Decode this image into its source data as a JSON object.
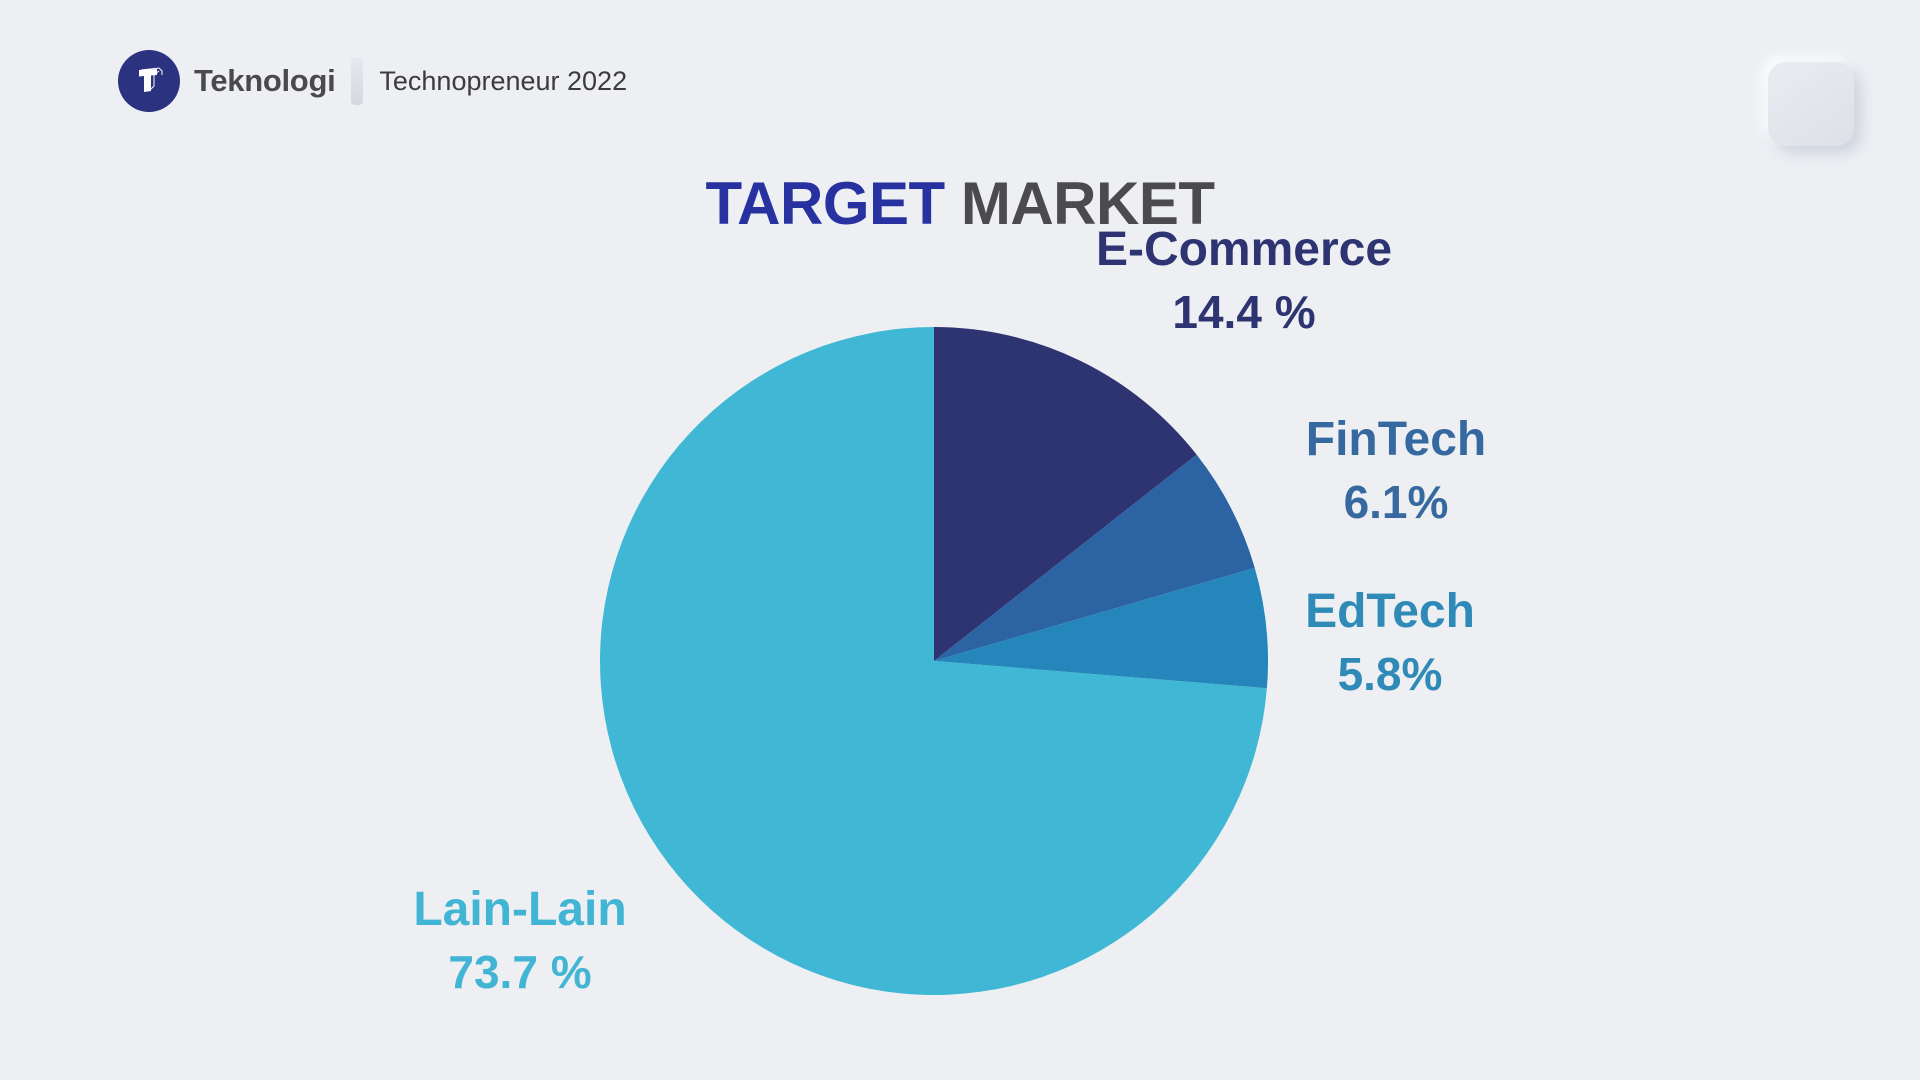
{
  "page": {
    "background": "#edeff3"
  },
  "header": {
    "brand": "Teknologi",
    "event": "Technopreneur 2022",
    "logo": {
      "icon": "isometric-t-logo",
      "bg_color": "#2b3380",
      "glyph_color": "#ffffff"
    }
  },
  "corner_tile": {
    "style": "neumorphic-square",
    "color": "#e1e5ea"
  },
  "title": {
    "primary": "TARGET",
    "secondary": "MARKET",
    "primary_color": "#2831a0",
    "secondary_color": "#4b4b4d"
  },
  "chart_data": {
    "type": "pie",
    "title": "TARGET MARKET",
    "start_angle_deg": 0,
    "direction": "clockwise",
    "unit": "%",
    "legend_position": "labels-around-pie",
    "slices": [
      {
        "label": "E-Commerce",
        "value": 14.4,
        "display_value": "14.4 %",
        "color": "#2e3471",
        "label_color": "#2e3471"
      },
      {
        "label": "FinTech",
        "value": 6.1,
        "display_value": "6.1%",
        "color": "#2c63a2",
        "label_color": "#35699f"
      },
      {
        "label": "EdTech",
        "value": 5.8,
        "display_value": "5.8%",
        "color": "#2486ba",
        "label_color": "#2f8ab8"
      },
      {
        "label": "Lain-Lain",
        "value": 73.7,
        "display_value": "73.7 %",
        "color": "#40b7d4",
        "label_color": "#41b5d3"
      }
    ]
  }
}
